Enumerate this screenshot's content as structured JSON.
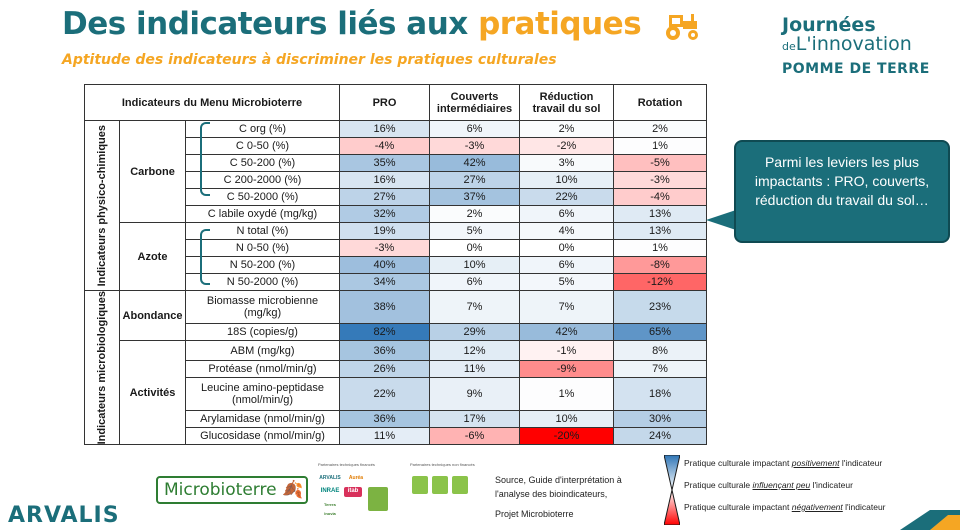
{
  "title": {
    "main": "Des indicateurs liés aux ",
    "highlight": "pratiques"
  },
  "subtitle": "Aptitude des indicateurs à discriminer les pratiques culturales",
  "brand": {
    "line1": "Journées",
    "line2_prefix": "de",
    "line2": "L'innovation",
    "line3": "POMME DE TERRE"
  },
  "table": {
    "header": {
      "indicators": "Indicateurs du Menu Microbioterre",
      "cols": [
        "PRO",
        "Couverts intermédiaires",
        "Réduction travail du sol",
        "Rotation"
      ]
    },
    "categories": [
      "Indicateurs physico-chimiques",
      "Indicateurs microbiologiques"
    ],
    "groups": [
      "Carbone",
      "Azote",
      "Abondance",
      "Activités"
    ],
    "rows": [
      {
        "name": "C org (%)",
        "vals": [
          "16%",
          "6%",
          "2%",
          "2%"
        ]
      },
      {
        "name": "C 0-50 (%)",
        "vals": [
          "-4%",
          "-3%",
          "-2%",
          "1%"
        ]
      },
      {
        "name": "C 50-200 (%)",
        "vals": [
          "35%",
          "42%",
          "3%",
          "-5%"
        ]
      },
      {
        "name": "C 200-2000 (%)",
        "vals": [
          "16%",
          "27%",
          "10%",
          "-3%"
        ]
      },
      {
        "name": "C 50-2000 (%)",
        "vals": [
          "27%",
          "37%",
          "22%",
          "-4%"
        ]
      },
      {
        "name": "C labile oxydé (mg/kg)",
        "vals": [
          "32%",
          "2%",
          "6%",
          "13%"
        ]
      },
      {
        "name": "N total (%)",
        "vals": [
          "19%",
          "5%",
          "4%",
          "13%"
        ]
      },
      {
        "name": "N 0-50 (%)",
        "vals": [
          "-3%",
          "0%",
          "0%",
          "1%"
        ]
      },
      {
        "name": "N 50-200 (%)",
        "vals": [
          "40%",
          "10%",
          "6%",
          "-8%"
        ]
      },
      {
        "name": "N 50-2000 (%)",
        "vals": [
          "34%",
          "6%",
          "5%",
          "-12%"
        ]
      },
      {
        "name": "Biomasse microbienne (mg/kg)",
        "vals": [
          "38%",
          "7%",
          "7%",
          "23%"
        ]
      },
      {
        "name": "18S (copies/g)",
        "vals": [
          "82%",
          "29%",
          "42%",
          "65%"
        ]
      },
      {
        "name": "ABM (mg/kg)",
        "vals": [
          "36%",
          "12%",
          "-1%",
          "8%"
        ]
      },
      {
        "name": "Protéase (nmol/min/g)",
        "vals": [
          "26%",
          "11%",
          "-9%",
          "7%"
        ]
      },
      {
        "name": "Leucine amino-peptidase (nmol/min/g)",
        "vals": [
          "22%",
          "9%",
          "1%",
          "18%"
        ]
      },
      {
        "name": "Arylamidase (nmol/min/g)",
        "vals": [
          "36%",
          "17%",
          "10%",
          "30%"
        ]
      },
      {
        "name": "Glucosidase (nmol/min/g)",
        "vals": [
          "11%",
          "-6%",
          "-20%",
          "24%"
        ]
      }
    ]
  },
  "callout": "Parmi les leviers les plus impactants : PRO, couverts, réduction du travail du sol…",
  "microbioterre_logo": "Microbioterre",
  "partners": {
    "financed": "Partenaires techniques financés",
    "non_financed": "Partenaires techniques non financés",
    "logos": [
      "ARVALIS",
      "Auréa",
      "INRAE",
      "itab",
      "Terres Inovia",
      "ACTA",
      "Agro"
    ]
  },
  "source": {
    "line1": "Source, Guide d'interprétation à l'analyse des bioindicateurs,",
    "line2": "Projet Microbioterre"
  },
  "legend": [
    {
      "pre": "Pratique culturale impactant ",
      "em": "positivement",
      "post": " l'indicateur"
    },
    {
      "pre": "Pratique culturale ",
      "em": "influençant peu",
      "post": " l'indicateur"
    },
    {
      "pre": "Pratique culturale impactant ",
      "em": "négativement",
      "post": " l'indicateur"
    }
  ],
  "footer_logo": "ARVALIS",
  "colors": {
    "teal": "#1b6e7a",
    "orange": "#f5a623",
    "positive": "#2e75b6",
    "negative": "#ff0000"
  }
}
